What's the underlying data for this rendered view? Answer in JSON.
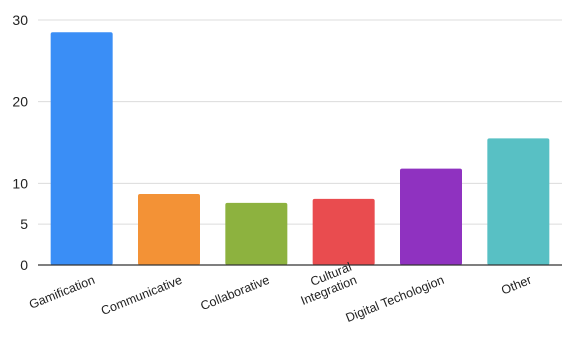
{
  "chart_data": {
    "type": "bar",
    "title": "",
    "xlabel": "",
    "ylabel": "",
    "categories": [
      [
        "Gamification"
      ],
      [
        "Communicative"
      ],
      [
        "Collaborative"
      ],
      [
        "Cultural",
        "Integration"
      ],
      [
        "Digital Techologion"
      ],
      [
        "Other"
      ]
    ],
    "values": [
      28.5,
      8.7,
      7.6,
      8.1,
      11.8,
      15.5
    ],
    "colors": [
      "#3a8ef6",
      "#f39236",
      "#8db23f",
      "#e94c4f",
      "#8f32c0",
      "#58c0c4"
    ],
    "ylim": [
      0,
      30
    ],
    "yticks": [
      0,
      5,
      10,
      20,
      30
    ],
    "ytick_labels": [
      "0",
      "5",
      "10",
      "20",
      "30"
    ],
    "grid": true,
    "legend": "none"
  }
}
